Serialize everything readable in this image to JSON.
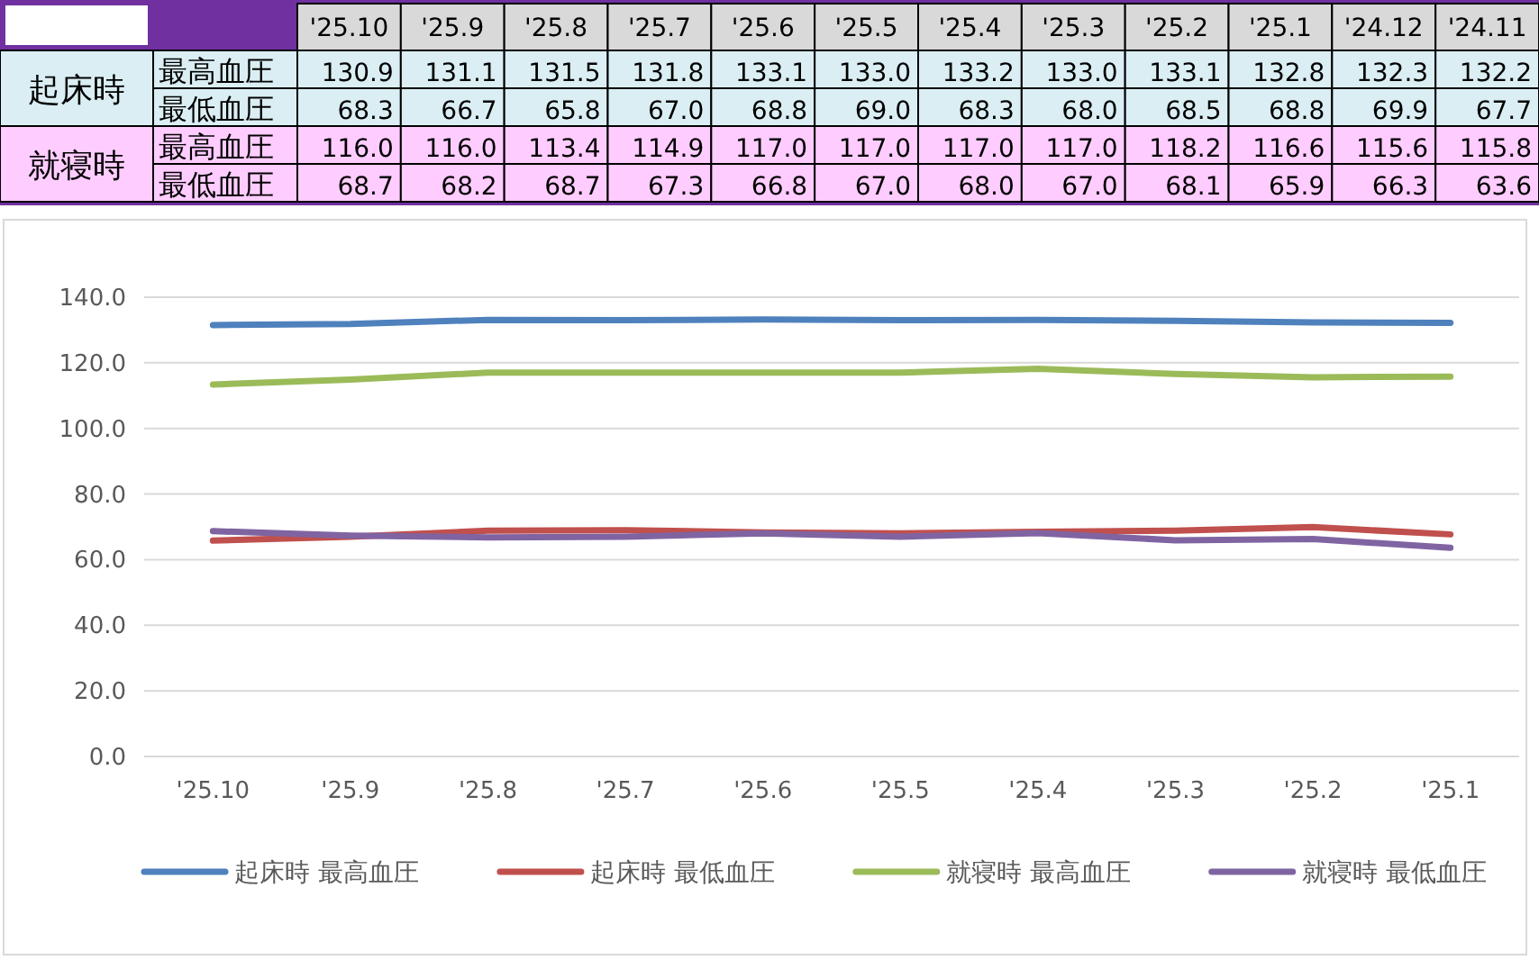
{
  "chart_data": [
    {
      "type": "heatmap",
      "categories": [
        "'25.10",
        "'25.9",
        "'25.8",
        "'25.7",
        "'25.6",
        "'25.5",
        "'25.4",
        "'25.3",
        "'25.2",
        "'25.1",
        "'24.12",
        "'24.11"
      ],
      "annotations": [
        "起床時",
        "就寝時"
      ],
      "y_categories": [
        "最高血圧",
        "最低血圧",
        "最高血圧",
        "最低血圧"
      ],
      "colors": [
        "#daeef3",
        "#daeef3",
        "#ffccff",
        "#ffccff"
      ],
      "cells": [
        [
          130.9,
          131.1,
          131.5,
          131.8,
          133.1,
          133.0,
          133.2,
          133.0,
          133.1,
          132.8,
          132.3,
          132.2
        ],
        [
          68.3,
          66.7,
          65.8,
          67.0,
          68.8,
          69.0,
          68.3,
          68.0,
          68.5,
          68.8,
          69.9,
          67.7
        ],
        [
          116.0,
          116.0,
          113.4,
          114.9,
          117.0,
          117.0,
          117.0,
          117.0,
          118.2,
          116.6,
          115.6,
          115.8
        ],
        [
          68.7,
          68.2,
          68.7,
          67.3,
          66.8,
          67.0,
          68.0,
          67.0,
          68.1,
          65.9,
          66.3,
          63.6
        ]
      ],
      "cell_labels": [
        [
          "130.9",
          "131.1",
          "131.5",
          "131.8",
          "133.1",
          "133.0",
          "133.2",
          "133.0",
          "133.1",
          "132.8",
          "132.3",
          "132.2"
        ],
        [
          "68.3",
          "66.7",
          "65.8",
          "67.0",
          "68.8",
          "69.0",
          "68.3",
          "68.0",
          "68.5",
          "68.8",
          "69.9",
          "67.7"
        ],
        [
          "116.0",
          "116.0",
          "113.4",
          "114.9",
          "117.0",
          "117.0",
          "117.0",
          "117.0",
          "118.2",
          "116.6",
          "115.6",
          "115.8"
        ],
        [
          "68.7",
          "68.2",
          "68.7",
          "67.3",
          "66.8",
          "67.0",
          "68.0",
          "67.0",
          "68.1",
          "65.9",
          "66.3",
          "63.6"
        ]
      ],
      "data_labels": true
    },
    {
      "type": "line",
      "categories": [
        "'25.10",
        "'25.9",
        "'25.8",
        "'25.7",
        "'25.6",
        "'25.5",
        "'25.4",
        "'25.3",
        "'25.2",
        "'25.1"
      ],
      "series": [
        {
          "name": "起床時 最高血圧",
          "color": "#4f81bd",
          "values": [
            131.5,
            131.8,
            133.1,
            133.0,
            133.2,
            133.0,
            133.1,
            132.8,
            132.3,
            132.2
          ]
        },
        {
          "name": "起床時 最低血圧",
          "color": "#c0504d",
          "values": [
            65.8,
            67.0,
            68.8,
            69.0,
            68.3,
            68.0,
            68.5,
            68.8,
            69.9,
            67.7
          ]
        },
        {
          "name": "就寝時 最高血圧",
          "color": "#9bbb59",
          "values": [
            113.4,
            114.9,
            117.0,
            117.0,
            117.0,
            117.0,
            118.2,
            116.6,
            115.6,
            115.8
          ]
        },
        {
          "name": "就寝時 最低血圧",
          "color": "#8064a2",
          "values": [
            68.7,
            67.3,
            66.8,
            67.0,
            68.0,
            67.0,
            68.1,
            65.9,
            66.3,
            63.6
          ]
        }
      ],
      "ylim": [
        0,
        140
      ],
      "yticks": [
        {
          "value": 0,
          "label": "0.0"
        },
        {
          "value": 20,
          "label": "20.0"
        },
        {
          "value": 40,
          "label": "40.0"
        },
        {
          "value": 60,
          "label": "60.0"
        },
        {
          "value": 80,
          "label": "80.0"
        },
        {
          "value": 100,
          "label": "100.0"
        },
        {
          "value": 120,
          "label": "120.0"
        },
        {
          "value": 140,
          "label": "140.0"
        }
      ],
      "grid": "y",
      "legend": "bottom",
      "marker": "none",
      "line_style": "solid"
    }
  ]
}
